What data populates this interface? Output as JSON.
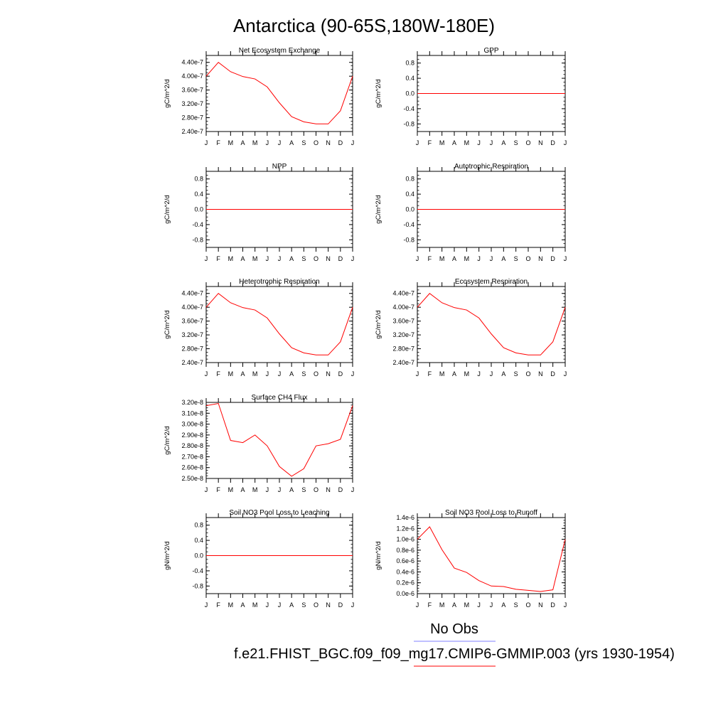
{
  "title": "Antarctica (90-65S,180W-180E)",
  "months": [
    "J",
    "F",
    "M",
    "A",
    "M",
    "J",
    "J",
    "A",
    "S",
    "O",
    "N",
    "D",
    "J"
  ],
  "legend": [
    {
      "label": "No Obs",
      "color": "#8080ff"
    },
    {
      "label": "f.e21.FHIST_BGC.f09_f09_mg17.CMIP6-GMMIP.003 (yrs 1930-1954)",
      "color": "#ff0000"
    }
  ],
  "chart_data": [
    {
      "type": "line",
      "title": "Net Ecosystem Exchange",
      "ylabel": "gC/m^2/d",
      "ylim": [
        2.4e-07,
        4.6e-07
      ],
      "yticks": [
        2.4e-07,
        2.8e-07,
        3.2e-07,
        3.6e-07,
        4e-07,
        4.4e-07
      ],
      "ytick_labels": [
        "2.40e-7",
        "2.80e-7",
        "3.20e-7",
        "3.60e-7",
        "4.00e-7",
        "4.40e-7"
      ],
      "series": [
        {
          "color": "#ff0000",
          "values": [
            4e-07,
            4.4e-07,
            4.13e-07,
            3.99e-07,
            3.92e-07,
            3.69e-07,
            3.23e-07,
            2.83e-07,
            2.68e-07,
            2.62e-07,
            2.62e-07,
            3e-07,
            4e-07
          ]
        }
      ]
    },
    {
      "type": "line",
      "title": "GPP",
      "ylabel": "gC/m^2/d",
      "ylim": [
        -1,
        1
      ],
      "yticks": [
        -0.8,
        -0.4,
        0.0,
        0.4,
        0.8
      ],
      "ytick_labels": [
        "-0.8",
        "-0.4",
        "0.0",
        "0.4",
        "0.8"
      ],
      "series": [
        {
          "color": "#ff0000",
          "values": [
            0,
            0,
            0,
            0,
            0,
            0,
            0,
            0,
            0,
            0,
            0,
            0,
            0
          ]
        }
      ]
    },
    {
      "type": "line",
      "title": "NPP",
      "ylabel": "gC/m^2/d",
      "ylim": [
        -1,
        1
      ],
      "yticks": [
        -0.8,
        -0.4,
        0.0,
        0.4,
        0.8
      ],
      "ytick_labels": [
        "-0.8",
        "-0.4",
        "0.0",
        "0.4",
        "0.8"
      ],
      "series": [
        {
          "color": "#ff0000",
          "values": [
            0,
            0,
            0,
            0,
            0,
            0,
            0,
            0,
            0,
            0,
            0,
            0,
            0
          ]
        }
      ]
    },
    {
      "type": "line",
      "title": "Autotrophic Respiration",
      "ylabel": "gC/m^2/d",
      "ylim": [
        -1,
        1
      ],
      "yticks": [
        -0.8,
        -0.4,
        0.0,
        0.4,
        0.8
      ],
      "ytick_labels": [
        "-0.8",
        "-0.4",
        "0.0",
        "0.4",
        "0.8"
      ],
      "series": [
        {
          "color": "#ff0000",
          "values": [
            0,
            0,
            0,
            0,
            0,
            0,
            0,
            0,
            0,
            0,
            0,
            0,
            0
          ]
        }
      ]
    },
    {
      "type": "line",
      "title": "Heterotrophic Respiration",
      "ylabel": "gC/m^2/d",
      "ylim": [
        2.4e-07,
        4.6e-07
      ],
      "yticks": [
        2.4e-07,
        2.8e-07,
        3.2e-07,
        3.6e-07,
        4e-07,
        4.4e-07
      ],
      "ytick_labels": [
        "2.40e-7",
        "2.80e-7",
        "3.20e-7",
        "3.60e-7",
        "4.00e-7",
        "4.40e-7"
      ],
      "series": [
        {
          "color": "#ff0000",
          "values": [
            4e-07,
            4.4e-07,
            4.13e-07,
            3.99e-07,
            3.92e-07,
            3.69e-07,
            3.23e-07,
            2.83e-07,
            2.68e-07,
            2.62e-07,
            2.62e-07,
            3e-07,
            4e-07
          ]
        }
      ]
    },
    {
      "type": "line",
      "title": "Ecosystem Respiration",
      "ylabel": "gC/m^2/d",
      "ylim": [
        2.4e-07,
        4.6e-07
      ],
      "yticks": [
        2.4e-07,
        2.8e-07,
        3.2e-07,
        3.6e-07,
        4e-07,
        4.4e-07
      ],
      "ytick_labels": [
        "2.40e-7",
        "2.80e-7",
        "3.20e-7",
        "3.60e-7",
        "4.00e-7",
        "4.40e-7"
      ],
      "series": [
        {
          "color": "#ff0000",
          "values": [
            4e-07,
            4.4e-07,
            4.13e-07,
            3.99e-07,
            3.92e-07,
            3.69e-07,
            3.23e-07,
            2.83e-07,
            2.68e-07,
            2.62e-07,
            2.62e-07,
            3e-07,
            4e-07
          ]
        }
      ]
    },
    {
      "type": "line",
      "title": "Surface CH4 Flux",
      "ylabel": "gC/m^2/d",
      "ylim": [
        2.5e-08,
        3.2e-08
      ],
      "yticks": [
        2.5e-08,
        2.6e-08,
        2.7e-08,
        2.8e-08,
        2.9e-08,
        3e-08,
        3.1e-08,
        3.2e-08
      ],
      "ytick_labels": [
        "2.50e-8",
        "2.60e-8",
        "2.70e-8",
        "2.80e-8",
        "2.90e-8",
        "3.00e-8",
        "3.10e-8",
        "3.20e-8"
      ],
      "series": [
        {
          "color": "#ff0000",
          "values": [
            3.17e-08,
            3.19e-08,
            2.85e-08,
            2.83e-08,
            2.9e-08,
            2.8e-08,
            2.61e-08,
            2.52e-08,
            2.59e-08,
            2.8e-08,
            2.82e-08,
            2.86e-08,
            3.17e-08
          ]
        }
      ]
    },
    {
      "type": "line",
      "title": "Soil NO3 Pool Loss to Leaching",
      "ylabel": "gN/m^2/d",
      "ylim": [
        -1,
        1
      ],
      "yticks": [
        -0.8,
        -0.4,
        0.0,
        0.4,
        0.8
      ],
      "ytick_labels": [
        "-0.8",
        "-0.4",
        "0.0",
        "0.4",
        "0.8"
      ],
      "series": [
        {
          "color": "#ff0000",
          "values": [
            0,
            0,
            0,
            0,
            0,
            0,
            0,
            0,
            0,
            0,
            0,
            0,
            0
          ]
        }
      ]
    },
    {
      "type": "line",
      "title": "Soil NO3 Pool Loss to Runoff",
      "ylabel": "gN/m^2/d",
      "ylim": [
        0,
        1.4e-06
      ],
      "yticks": [
        0,
        2e-07,
        4e-07,
        6e-07,
        8e-07,
        1e-06,
        1.2e-06,
        1.4e-06
      ],
      "ytick_labels": [
        "0.0e-6",
        "0.2e-6",
        "0.4e-6",
        "0.6e-6",
        "0.8e-6",
        "1.0e-6",
        "1.2e-6",
        "1.4e-6"
      ],
      "series": [
        {
          "color": "#ff0000",
          "values": [
            1e-06,
            1.23e-06,
            8.1e-07,
            4.7e-07,
            3.9e-07,
            2.4e-07,
            1.4e-07,
            1.3e-07,
            8e-08,
            6e-08,
            4e-08,
            7e-08,
            1e-06
          ]
        }
      ]
    }
  ]
}
